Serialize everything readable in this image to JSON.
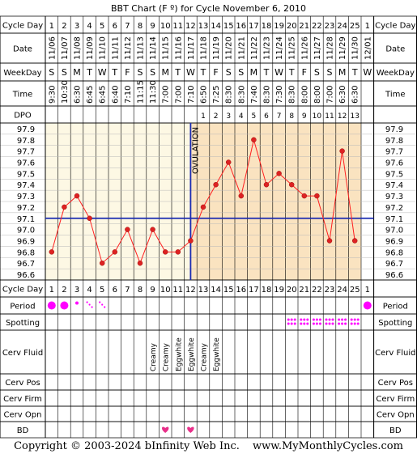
{
  "title": "BBT Chart (F º) for Cycle November 6, 2010",
  "row_labels": {
    "cycle_day": "Cycle Day",
    "date": "Date",
    "weekday": "WeekDay",
    "time": "Time",
    "dpo": "DPO",
    "period": "Period",
    "spotting": "Spotting",
    "cerv_fluid": "Cerv Fluid",
    "cerv_pos": "Cerv Pos",
    "cerv_firm": "Cerv Firm",
    "cerv_opn": "Cerv Opn",
    "bd": "BD"
  },
  "ovulation_label": "OVULATION",
  "cycle_days": [
    "1",
    "2",
    "3",
    "4",
    "5",
    "6",
    "7",
    "8",
    "9",
    "10",
    "11",
    "12",
    "13",
    "14",
    "15",
    "16",
    "17",
    "18",
    "19",
    "20",
    "21",
    "22",
    "23",
    "24",
    "25",
    "1"
  ],
  "dates": [
    "11/06",
    "11/07",
    "11/08",
    "11/09",
    "11/10",
    "11/11",
    "11/12",
    "11/13",
    "11/14",
    "11/15",
    "11/16",
    "11/17",
    "11/18",
    "11/19",
    "11/20",
    "11/21",
    "11/22",
    "11/23",
    "11/24",
    "11/25",
    "11/26",
    "11/27",
    "11/28",
    "11/29",
    "11/30",
    "12/01"
  ],
  "weekdays": [
    "S",
    "S",
    "M",
    "T",
    "W",
    "T",
    "F",
    "S",
    "S",
    "M",
    "T",
    "W",
    "T",
    "F",
    "S",
    "S",
    "M",
    "T",
    "W",
    "T",
    "F",
    "S",
    "S",
    "M",
    "T",
    "W"
  ],
  "times": [
    "9:30",
    "10:30",
    "6:30",
    "6:45",
    "6:45",
    "6:40",
    "7:10",
    "11:15",
    "11:30",
    "7:00",
    "7:00",
    "7:10",
    "6:50",
    "7:25",
    "8:30",
    "8:30",
    "7:40",
    "8:30",
    "7:30",
    "8:30",
    "8:00",
    "8:00",
    "7:00",
    "6:30",
    "6:30",
    ""
  ],
  "dpo": [
    "",
    "",
    "",
    "",
    "",
    "",
    "",
    "",
    "",
    "",
    "",
    "",
    "1",
    "2",
    "3",
    "4",
    "5",
    "6",
    "7",
    "8",
    "9",
    "10",
    "11",
    "12",
    "13",
    ""
  ],
  "temp_ticks": [
    "97.9",
    "97.8",
    "97.7",
    "97.6",
    "97.5",
    "97.4",
    "97.3",
    "97.2",
    "97.1",
    "97.0",
    "96.9",
    "96.8",
    "96.7",
    "96.6"
  ],
  "period": [
    "heavy",
    "heavy",
    "light",
    "spotting",
    "spotting",
    "",
    "",
    "",
    "",
    "",
    "",
    "",
    "",
    "",
    "",
    "",
    "",
    "",
    "",
    "",
    "",
    "",
    "",
    "",
    "",
    "heavy"
  ],
  "spotting": [
    "",
    "",
    "",
    "",
    "",
    "",
    "",
    "",
    "",
    "",
    "",
    "",
    "",
    "",
    "",
    "",
    "",
    "",
    "",
    "spot",
    "spot",
    "spot",
    "spot",
    "spot",
    "spot",
    ""
  ],
  "cerv_fluid": [
    "",
    "",
    "",
    "",
    "",
    "",
    "",
    "",
    "Creamy",
    "Creamy",
    "Eggwhite",
    "Eggwhite",
    "Creamy",
    "Eggwhite",
    "",
    "",
    "",
    "",
    "",
    "",
    "",
    "",
    "",
    "",
    "",
    ""
  ],
  "bd": [
    "",
    "",
    "",
    "",
    "",
    "",
    "",
    "",
    "",
    "heart",
    "",
    "heart",
    "",
    "",
    "",
    "",
    "",
    "",
    "",
    "",
    "",
    "",
    "",
    "",
    "",
    ""
  ],
  "footer": {
    "copyright": "Copyright © 2003-2024 bInfinity Web Inc.",
    "site": "www.MyMonthlyCycles.com"
  },
  "colors": {
    "pre_ovulation_bg": "#fdf8e4",
    "post_ovulation_bg": "#fae3c0",
    "line": "#ff2020",
    "point": "#dd2222",
    "coverline": "#1a2ab0",
    "ovulation_line": "#1a2ab0",
    "period_dot": "#ff00ff",
    "heart": "#e8308a",
    "grid": "#b8b8b8"
  },
  "chart_data": {
    "type": "line",
    "title": "BBT Chart (F º) for Cycle November 6, 2010",
    "xlabel": "Cycle Day",
    "ylabel": "",
    "x": [
      1,
      2,
      3,
      4,
      5,
      6,
      7,
      8,
      9,
      10,
      11,
      12,
      13,
      14,
      15,
      16,
      17,
      18,
      19,
      20,
      21,
      22,
      23,
      24,
      25
    ],
    "series": [
      {
        "values": [
          96.8,
          97.2,
          97.3,
          97.1,
          96.7,
          96.8,
          97.0,
          96.7,
          97.0,
          96.8,
          96.8,
          96.9,
          97.2,
          97.4,
          97.6,
          97.3,
          97.8,
          97.4,
          97.5,
          97.4,
          97.3,
          97.3,
          96.9,
          97.7,
          96.9
        ]
      }
    ],
    "coverline": 97.1,
    "ovulation_day": 12,
    "ylim": [
      96.6,
      97.9
    ],
    "grid": true
  }
}
